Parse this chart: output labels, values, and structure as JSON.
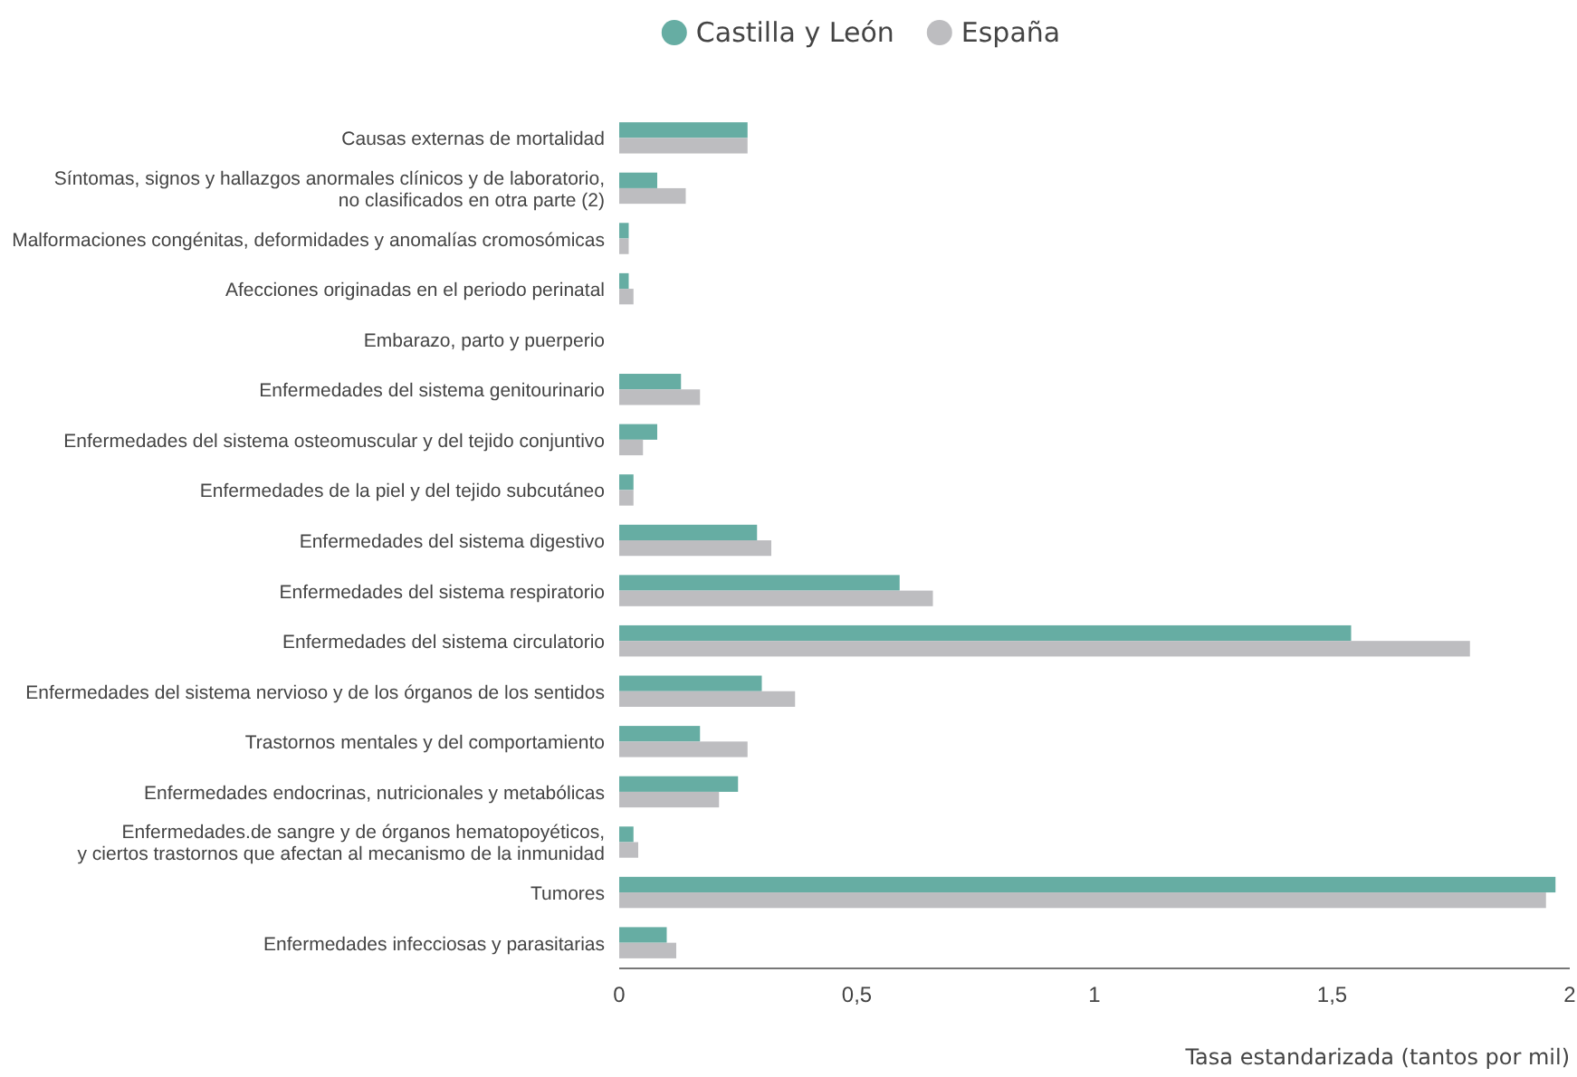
{
  "chart_data": {
    "type": "bar",
    "orientation": "horizontal",
    "xlabel": "Tasa estandarizada (tantos por mil)",
    "categories": [
      "Causas externas de mortalidad",
      "Síntomas, signos y hallazgos anormales clínicos y de laboratorio,\nno clasificados en otra parte (2)",
      "Malformaciones congénitas, deformidades y anomalías cromosómicas",
      "Afecciones originadas en el periodo perinatal",
      "Embarazo, parto y puerperio",
      "Enfermedades del sistema genitourinario",
      "Enfermedades del sistema osteomuscular y del tejido conjuntivo",
      "Enfermedades de la piel y del tejido subcutáneo",
      "Enfermedades del sistema digestivo",
      "Enfermedades del sistema respiratorio",
      "Enfermedades del sistema circulatorio",
      "Enfermedades del sistema nervioso y de los órganos de los sentidos",
      "Trastornos mentales y del comportamiento",
      "Enfermedades endocrinas, nutricionales y metabólicas",
      "Enfermedades.de sangre y de órganos hematopoyéticos,\ny ciertos trastornos que afectan al mecanismo de la inmunidad",
      "Tumores",
      "Enfermedades infecciosas y parasitarias"
    ],
    "series": [
      {
        "name": "Castilla y León",
        "color": "#66ada3",
        "values": [
          0.27,
          0.08,
          0.02,
          0.02,
          0,
          0.13,
          0.08,
          0.03,
          0.29,
          0.59,
          1.54,
          0.3,
          0.17,
          0.25,
          0.03,
          1.97,
          0.1
        ]
      },
      {
        "name": "España",
        "color": "#bdbdc0",
        "values": [
          0.27,
          0.14,
          0.02,
          0.03,
          0,
          0.17,
          0.05,
          0.03,
          0.32,
          0.66,
          1.79,
          0.37,
          0.27,
          0.21,
          0.04,
          1.95,
          0.12
        ]
      }
    ],
    "xlim": [
      0,
      2
    ],
    "xticks": [
      0,
      {
        "value": 0.5,
        "label": "0,5"
      },
      1,
      {
        "value": 1.5,
        "label": "1,5"
      },
      2
    ],
    "legend": "top",
    "grid": false
  }
}
